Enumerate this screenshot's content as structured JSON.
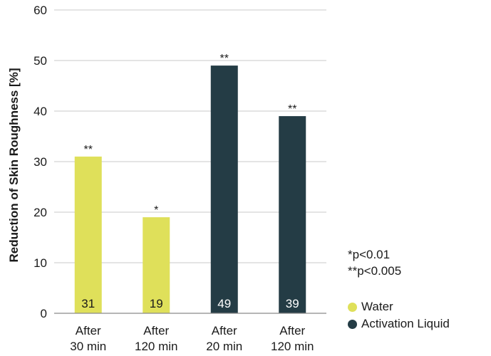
{
  "chart_data": {
    "type": "bar",
    "ylabel": "Reduction of Skin Roughness [%]",
    "ylim": [
      0,
      60
    ],
    "yticks": [
      0,
      10,
      20,
      30,
      40,
      50,
      60
    ],
    "grid": true,
    "legend_position": "bottom-right",
    "categories": [
      [
        "After",
        "30 min"
      ],
      [
        "After",
        "120 min"
      ],
      [
        "After",
        "20 min"
      ],
      [
        "After",
        "120 min"
      ]
    ],
    "values": [
      31,
      19,
      49,
      39
    ],
    "data_labels": [
      "31",
      "19",
      "49",
      "39"
    ],
    "significance": [
      "**",
      "*",
      "**",
      "**"
    ],
    "series_index": [
      0,
      0,
      1,
      1
    ],
    "series": [
      {
        "name": "Water",
        "color": "#dfe05a",
        "label_color": "#1a1a1a"
      },
      {
        "name": "Activation Liquid",
        "color": "#243c45",
        "label_color": "#ffffff"
      }
    ],
    "notes": [
      "*p<0.01",
      "**p<0.005"
    ]
  }
}
